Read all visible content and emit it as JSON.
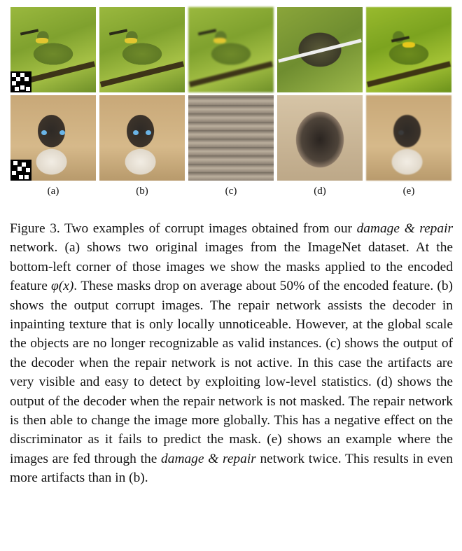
{
  "labels": [
    "(a)",
    "(b)",
    "(c)",
    "(d)",
    "(e)"
  ],
  "caption": {
    "prefix": "Figure 3. Two examples of corrupt images obtained from our ",
    "em1": "damage & repair",
    "part2": " network. (a) shows two original images from the ImageNet dataset. At the bottom-left corner of those images we show the masks applied to the encoded feature ",
    "math": "φ(x)",
    "part3": ". These masks drop on average about ",
    "pct": "50%",
    "part4": " of the encoded feature. (b) shows the output corrupt images. The repair network assists the decoder in inpainting texture that is only locally unnoticeable. However, at the global scale the objects are no longer recognizable as valid instances. (c) shows the output of the decoder when the repair network is not active. In this case the artifacts are very visible and easy to detect by exploiting low-level statistics. (d) shows the output of the decoder when the repair network is not masked. The repair network is then able to change the image more globally. This has a negative effect on the discriminator as it fails to predict the mask. (e) shows an example where the images are fed through the ",
    "em2": "damage & repair",
    "part5": " network twice. This results in even more artifacts than in (b)."
  }
}
